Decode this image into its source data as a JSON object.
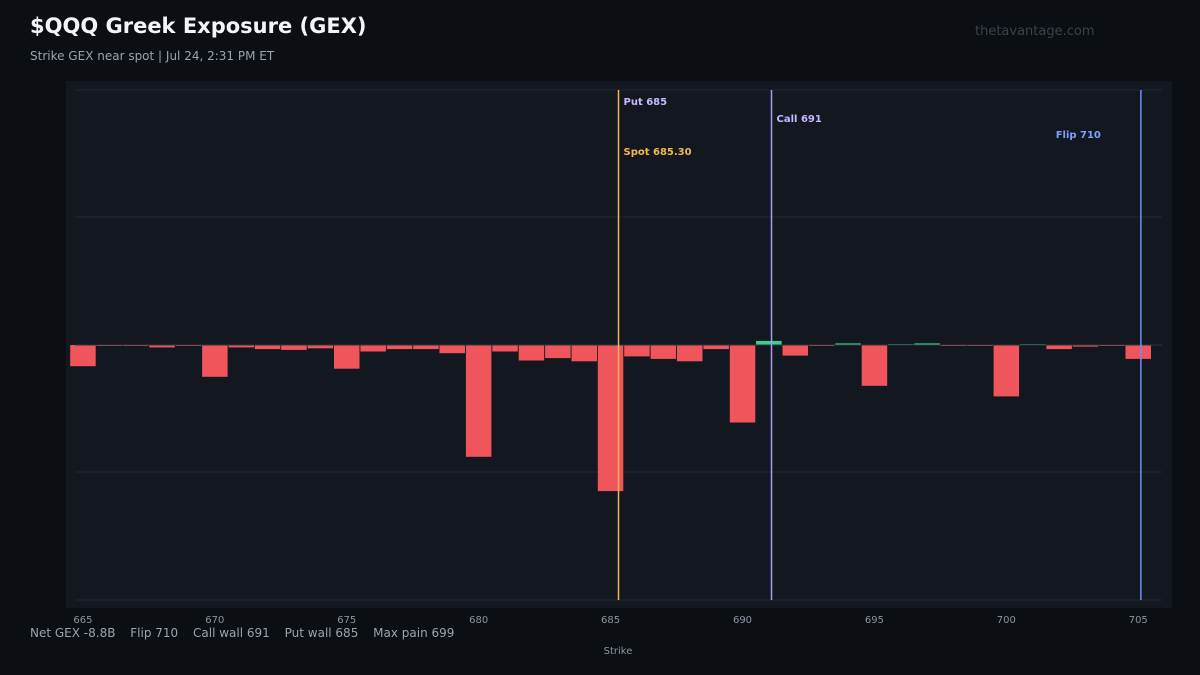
{
  "header": {
    "title": "$QQQ Greek Exposure (GEX)",
    "subtitle": "Strike GEX near spot  |  Jul 24, 2:31 PM ET",
    "watermark": "thetavantage.com"
  },
  "footer": {
    "net_gex": "Net GEX -8.8B",
    "flip": "Flip 710",
    "call_wall": "Call wall 691",
    "put_wall": "Put wall 685",
    "max_pain": "Max pain 699"
  },
  "colors": {
    "background": "#0b0e13",
    "plot_background": "#121720",
    "negative_bar": "#f0555b",
    "positive_bar": "#3ecf8e",
    "spot_line": "#f5b84a",
    "put_line": "#f5b84a",
    "put_label": "#c8b8ff",
    "call_line": "#a99bf0",
    "call_label": "#c8b8ff",
    "flip_line": "#6f8ff5",
    "flip_label": "#7fa0ff",
    "grid": "#232a35"
  },
  "chart_data": {
    "type": "bar",
    "xlabel": "Strike",
    "ylabel": "",
    "x_ticks": [
      665,
      670,
      675,
      680,
      685,
      690,
      695,
      700,
      705
    ],
    "xlim": [
      664.7,
      705.9
    ],
    "ylim": [
      -2.0,
      2.0
    ],
    "grid": true,
    "strikes": [
      665,
      666,
      667,
      668,
      669,
      670,
      671,
      672,
      673,
      674,
      675,
      676,
      677,
      678,
      679,
      680,
      681,
      682,
      683,
      684,
      685,
      686,
      687,
      688,
      689,
      690,
      691,
      692,
      693,
      694,
      695,
      696,
      697,
      698,
      699,
      700,
      701,
      702,
      703,
      704,
      705
    ],
    "values": [
      -0.26,
      -0.01,
      -0.01,
      -0.03,
      -0.01,
      -0.39,
      -0.03,
      -0.05,
      -0.06,
      -0.04,
      -0.29,
      -0.08,
      -0.05,
      -0.05,
      -0.1,
      -1.37,
      -0.08,
      -0.19,
      -0.16,
      -0.2,
      -1.79,
      -0.14,
      -0.17,
      -0.2,
      -0.05,
      -0.95,
      0.05,
      -0.13,
      -0.01,
      0.02,
      -0.5,
      0.01,
      0.02,
      -0.01,
      -0.01,
      -0.63,
      0.01,
      -0.05,
      -0.02,
      -0.01,
      -0.17
    ],
    "reference_lines": [
      {
        "name": "spot",
        "value": 685.3,
        "label": "Spot 685.30"
      },
      {
        "name": "put",
        "value": 685.3,
        "label": "Put 685"
      },
      {
        "name": "call",
        "value": 691.1,
        "label": "Call 691"
      },
      {
        "name": "flip",
        "value": 705.1,
        "label": "Flip 710"
      }
    ]
  }
}
